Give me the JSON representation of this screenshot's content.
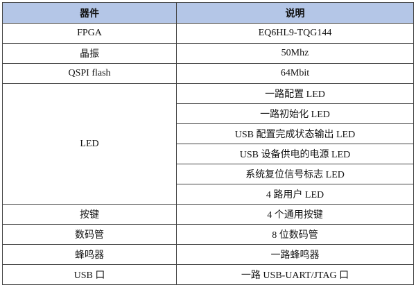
{
  "header": {
    "component": "器件",
    "description": "说明"
  },
  "colors": {
    "header_bg": "#b4c6e7"
  },
  "rows": [
    {
      "component": "FPGA",
      "description": "EQ6HL9-TQG144"
    },
    {
      "component": "晶振",
      "description": "50Mhz"
    },
    {
      "component": "QSPI flash",
      "description": "64Mbit"
    },
    {
      "component": "LED",
      "descriptions": [
        "一路配置 LED",
        "一路初始化 LED",
        "USB 配置完成状态输出 LED",
        "USB 设备供电的电源 LED",
        "系统复位信号标志 LED",
        "4 路用户 LED"
      ]
    },
    {
      "component": "按键",
      "description": "4 个通用按键"
    },
    {
      "component": "数码管",
      "description": "8 位数码管"
    },
    {
      "component": "蜂鸣器",
      "description": "一路蜂鸣器"
    },
    {
      "component": "USB 口",
      "description": "一路 USB-UART/JTAG 口"
    }
  ]
}
